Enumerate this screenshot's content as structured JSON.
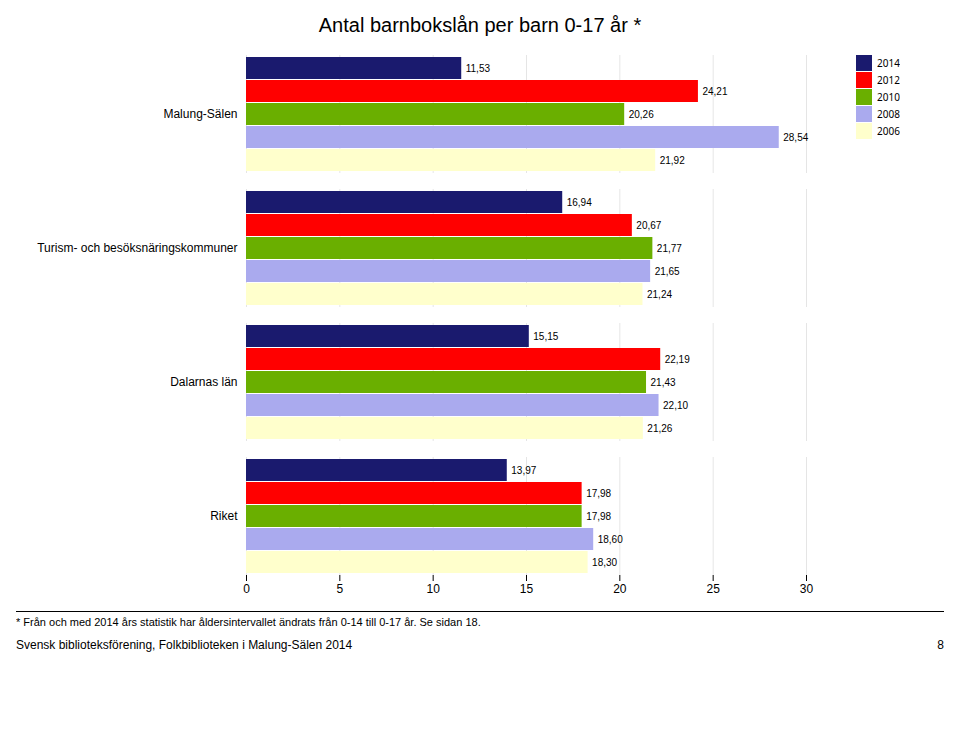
{
  "chart_data": {
    "type": "bar",
    "orientation": "horizontal",
    "title": "Antal barnbokslån per barn 0-17 år *",
    "categories": [
      "Malung-Sälen",
      "Turism- och besöksnäringskommuner",
      "Dalarnas län",
      "Riket"
    ],
    "series": [
      {
        "name": "2014",
        "color": "#1A1A6E",
        "values": [
          11.53,
          16.94,
          15.15,
          13.97
        ],
        "value_labels": [
          "11,53",
          "16,94",
          "15,15",
          "13,97"
        ]
      },
      {
        "name": "2012",
        "color": "#FF0000",
        "values": [
          24.21,
          20.67,
          22.19,
          17.98
        ],
        "value_labels": [
          "24,21",
          "20,67",
          "22,19",
          "17,98"
        ]
      },
      {
        "name": "2010",
        "color": "#6AAF00",
        "values": [
          20.26,
          21.77,
          21.43,
          17.98
        ],
        "value_labels": [
          "20,26",
          "21,77",
          "21,43",
          "17,98"
        ]
      },
      {
        "name": "2008",
        "color": "#AAAAEE",
        "values": [
          28.54,
          21.65,
          22.1,
          18.6
        ],
        "value_labels": [
          "28,54",
          "21,65",
          "22,10",
          "18,60"
        ]
      },
      {
        "name": "2006",
        "color": "#FFFFCC",
        "values": [
          21.92,
          21.24,
          21.26,
          18.3
        ],
        "value_labels": [
          "21,92",
          "21,24",
          "21,26",
          "18,30"
        ]
      }
    ],
    "xlim": [
      0,
      30
    ],
    "xticks": [
      0,
      5,
      10,
      15,
      20,
      25,
      30
    ],
    "grid": true,
    "data_labels": true,
    "legend": "right",
    "annotations": [
      "* Från och med 2014 års statistik har åldersintervallet ändrats från 0-14 till 0-17 år. Se sidan 18.",
      "Svensk biblioteksförening, Folkbiblioteken i Malung-Sälen 2014",
      "8"
    ]
  }
}
